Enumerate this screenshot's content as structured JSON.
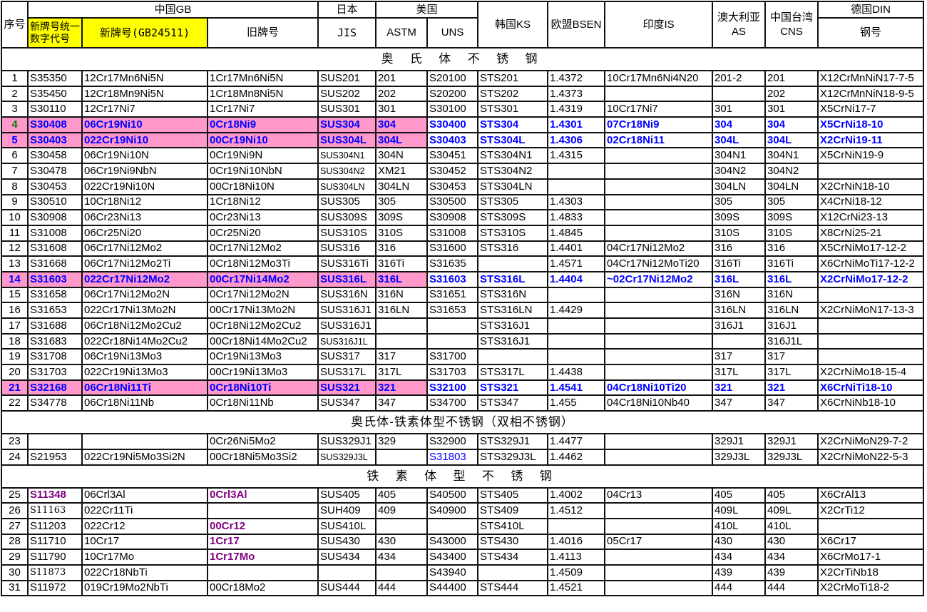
{
  "header": {
    "no": "序号",
    "china_gb": "中国GB",
    "unified_code": "新牌号统一数字代号",
    "new_grade": "新牌号(GB24511)",
    "old_grade": "旧牌号",
    "japan": "日本",
    "jis": "JIS",
    "usa": "美国",
    "astm": "ASTM",
    "uns": "UNS",
    "korea": "韩国KS",
    "eu": "欧盟BSEN",
    "india": "印度IS",
    "australia": "澳大利亚AS",
    "taiwan": "中国台湾CNS",
    "germany": "德国DIN",
    "steel_no": "钢号"
  },
  "colors": {
    "highlight_bg": "#ff99cc",
    "highlight_text": "#0000ff",
    "accent_purple": "#800080",
    "header_yellow": "#ffff00"
  },
  "sections": [
    {
      "title": "奥 氏 体 不 锈 钢",
      "rows": [
        {
          "no": "1",
          "cells": [
            "S35350",
            "12Cr17Mn6Ni5N",
            "1Cr17Mn6Ni5N",
            "SUS201",
            "201",
            "S20100",
            "STS201",
            "1.4372",
            "10Cr17Mn6Ni4N20",
            "201-2",
            "201",
            "X12CrMnNiN17-7-5"
          ]
        },
        {
          "no": "2",
          "cells": [
            "S35450",
            "12Cr18Mn9Ni5N",
            "1Cr18Mn8Ni5N",
            "SUS202",
            "202",
            "S20200",
            "STS202",
            "1.4373",
            "",
            "",
            "202",
            "X12CrMnNiN18-9-5"
          ]
        },
        {
          "no": "3",
          "cells": [
            "S30110",
            "12Cr17Ni7",
            "1Cr17Ni7",
            "SUS301",
            "301",
            "S30100",
            "STS301",
            "1.4319",
            "10Cr17Ni7",
            "301",
            "301",
            "X5CrNi17-7"
          ]
        },
        {
          "no": "4",
          "highlight": true,
          "cells": [
            "S30408",
            "06Cr19Ni10",
            "0Cr18Ni9",
            "SUS304",
            "304",
            "S30400",
            "STS304",
            "1.4301",
            "07Cr18Ni9",
            "304",
            "304",
            "X5CrNi18-10"
          ]
        },
        {
          "no": "5",
          "highlight": true,
          "cells": [
            "S30403",
            "022Cr19Ni10",
            "00Cr19Ni10",
            "SUS304L",
            "304L",
            "S30403",
            "STS304L",
            "1.4306",
            "02Cr18Ni11",
            "304L",
            "304L",
            "X2CrNi19-11"
          ]
        },
        {
          "no": "6",
          "cells": [
            "S30458",
            "06Cr19Ni10N",
            "0Cr19Ni9N",
            "SUS304N1",
            "304N",
            "S30451",
            "STS304N1",
            "1.4315",
            "",
            "304N1",
            "304N1",
            "X5CrNiN19-9"
          ]
        },
        {
          "no": "7",
          "cells": [
            "S30478",
            "06Cr19Ni9NbN",
            "0Cr19Ni10NbN",
            "SUS304N2",
            "XM21",
            "S30452",
            "STS304N2",
            "",
            "",
            "304N2",
            "304N2",
            ""
          ]
        },
        {
          "no": "8",
          "cells": [
            "S30453",
            "022Cr19Ni10N",
            "00Cr18Ni10N",
            "SUS304LN",
            "304LN",
            "S30453",
            "STS304LN",
            "",
            "",
            "304LN",
            "304LN",
            "X2CrNiN18-10"
          ]
        },
        {
          "no": "9",
          "cells": [
            "S30510",
            "10Cr18Ni12",
            "1Cr18Ni12",
            "SUS305",
            "305",
            "S30500",
            "STS305",
            "1.4303",
            "",
            "305",
            "305",
            "X4CrNi18-12"
          ]
        },
        {
          "no": "10",
          "cells": [
            "S30908",
            "06Cr23Ni13",
            "0Cr23Ni13",
            "SUS309S",
            "309S",
            "S30908",
            "STS309S",
            "1.4833",
            "",
            "309S",
            "309S",
            "X12CrNi23-13"
          ]
        },
        {
          "no": "11",
          "cells": [
            "S31008",
            "06Cr25Ni20",
            "0Cr25Ni20",
            "SUS310S",
            "310S",
            "S31008",
            "STS310S",
            "1.4845",
            "",
            "310S",
            "310S",
            "X8CrNi25-21"
          ]
        },
        {
          "no": "12",
          "cells": [
            "S31608",
            "06Cr17Ni12Mo2",
            "0Cr17Ni12Mo2",
            "SUS316",
            "316",
            "S31600",
            "STS316",
            "1.4401",
            "04Cr17Ni12Mo2",
            "316",
            "316",
            "X5CrNiMo17-12-2"
          ]
        },
        {
          "no": "13",
          "cells": [
            "S31668",
            "06Cr17Ni12Mo2Ti",
            "0Cr18Ni12Mo3Ti",
            "SUS316Ti",
            "316Ti",
            "S31635",
            "",
            "1.4571",
            "04Cr17Ni12MoTi20",
            "316Ti",
            "316Ti",
            "X6CrNiMoTi17-12-2"
          ]
        },
        {
          "no": "14",
          "highlight": true,
          "cells": [
            "S31603",
            "022Cr17Ni12Mo2",
            "00Cr17Ni14Mo2",
            "SUS316L",
            "316L",
            "S31603",
            "STS316L",
            "1.4404",
            "~02Cr17Ni12Mo2",
            "316L",
            "316L",
            "X2CrNiMo17-12-2"
          ]
        },
        {
          "no": "15",
          "cells": [
            "S31658",
            "06Cr17Ni12Mo2N",
            "0Cr17Ni12Mo2N",
            "SUS316N",
            "316N",
            "S31651",
            "STS316N",
            "",
            "",
            "316N",
            "316N",
            ""
          ]
        },
        {
          "no": "16",
          "cells": [
            "S31653",
            "022Cr17Ni13Mo2N",
            "00Cr17Ni13Mo2N",
            "SUS316J1",
            "316LN",
            "S31653",
            "STS316LN",
            "1.4429",
            "",
            "316LN",
            "316LN",
            "X2CrNiMoN17-13-3"
          ]
        },
        {
          "no": "17",
          "cells": [
            "S31688",
            "06Cr18Ni12Mo2Cu2",
            "0Cr18Ni12Mo2Cu2",
            "SUS316J1",
            "",
            "",
            "STS316J1",
            "",
            "",
            "316J1",
            "316J1",
            ""
          ]
        },
        {
          "no": "18",
          "cells": [
            "S31683",
            "022Cr18Ni14Mo2Cu2",
            "00Cr18Ni14Mo2Cu2",
            "SUS316J1L",
            "",
            "",
            "STS316J1",
            "",
            "",
            "",
            "316J1L",
            ""
          ]
        },
        {
          "no": "19",
          "cells": [
            "S31708",
            "06Cr19Ni13Mo3",
            "0Cr19Ni13Mo3",
            "SUS317",
            "317",
            "S31700",
            "",
            "",
            "",
            "317",
            "317",
            ""
          ]
        },
        {
          "no": "20",
          "cells": [
            "S31703",
            "022Cr19Ni13Mo3",
            "00Cr19Ni13Mo3",
            "SUS317L",
            "317L",
            "S31703",
            "STS317L",
            "1.4438",
            "",
            "317L",
            "317L",
            "X2CrNiMo18-15-4"
          ]
        },
        {
          "no": "21",
          "highlight": true,
          "cells": [
            "S32168",
            "06Cr18Ni11Ti",
            "0Cr18Ni10Ti",
            "SUS321",
            "321",
            "S32100",
            "STS321",
            "1.4541",
            "04Cr18Ni10Ti20",
            "321",
            "321",
            "X6CrNiTi18-10"
          ]
        },
        {
          "no": "22",
          "cells": [
            "S34778",
            "06Cr18Ni11Nb",
            "0Cr18Ni11Nb",
            "SUS347",
            "347",
            "S34700",
            "STS347",
            "1.455",
            "04Cr18Ni10Nb40",
            "347",
            "347",
            "X6CrNiNb18-10"
          ]
        }
      ]
    },
    {
      "title": "奥氏体-铁素体型不锈钢（双相不锈钢）",
      "rows": [
        {
          "no": "23",
          "cells": [
            "",
            "",
            "0Cr26Ni5Mo2",
            "SUS329J1",
            "329",
            "S32900",
            "STS329J1",
            "1.4477",
            "",
            "329J1",
            "329J1",
            "X2CrNiMoN29-7-2"
          ]
        },
        {
          "no": "24",
          "blue": [
            5
          ],
          "cells": [
            "S21953",
            "022Cr19Ni5Mo3Si2N",
            "00Cr18Ni5Mo3Si2",
            "SUS329J3L",
            "",
            "S31803",
            "STS329J3L",
            "1.4462",
            "",
            "329J3L",
            "329J3L",
            "X2CrNiMoN22-5-3"
          ]
        }
      ]
    },
    {
      "title": "铁 素 体 型 不 锈 钢",
      "rows": [
        {
          "no": "25",
          "purple": [
            0,
            2
          ],
          "cells": [
            "S11348",
            "06Crl3Al",
            "0Crl3Al",
            "SUS405",
            "405",
            "S40500",
            "STS405",
            "1.4002",
            "04Cr13",
            "405",
            "405",
            "X6CrAl13"
          ]
        },
        {
          "no": "26",
          "cells": [
            "S11163",
            "022Cr11Ti",
            "",
            "SUH409",
            "409",
            "S40900",
            "STS409",
            "1.4512",
            "",
            "409L",
            "409L",
            "X2CrTi12"
          ]
        },
        {
          "no": "27",
          "purple": [
            2
          ],
          "cells": [
            "S11203",
            "022Cr12",
            "00Cr12",
            "SUS410L",
            "",
            "",
            "STS410L",
            "",
            "",
            "410L",
            "410L",
            ""
          ]
        },
        {
          "no": "28",
          "purple": [
            2
          ],
          "cells": [
            "S11710",
            "10Cr17",
            "1Cr17",
            "SUS430",
            "430",
            "S43000",
            "STS430",
            "1.4016",
            "05Cr17",
            "430",
            "430",
            "X6Cr17"
          ]
        },
        {
          "no": "29",
          "purple": [
            2
          ],
          "cells": [
            "S11790",
            "10Cr17Mo",
            "1Cr17Mo",
            "SUS434",
            "434",
            "S43400",
            "STS434",
            "1.4113",
            "",
            "434",
            "434",
            "X6CrMo17-1"
          ]
        },
        {
          "no": "30",
          "cells": [
            "S11873",
            "022Cr18NbTi",
            "",
            "",
            "",
            "S43940",
            "",
            "1.4509",
            "",
            "439",
            "439",
            "X2CrTiNb18"
          ]
        },
        {
          "no": "31",
          "cells": [
            "S11972",
            "019Cr19Mo2NbTi",
            "00Cr18Mo2",
            "SUS444",
            "444",
            "S44400",
            "STS444",
            "1.4521",
            "",
            "444",
            "444",
            "X2CrMoTi18-2"
          ]
        }
      ]
    }
  ]
}
